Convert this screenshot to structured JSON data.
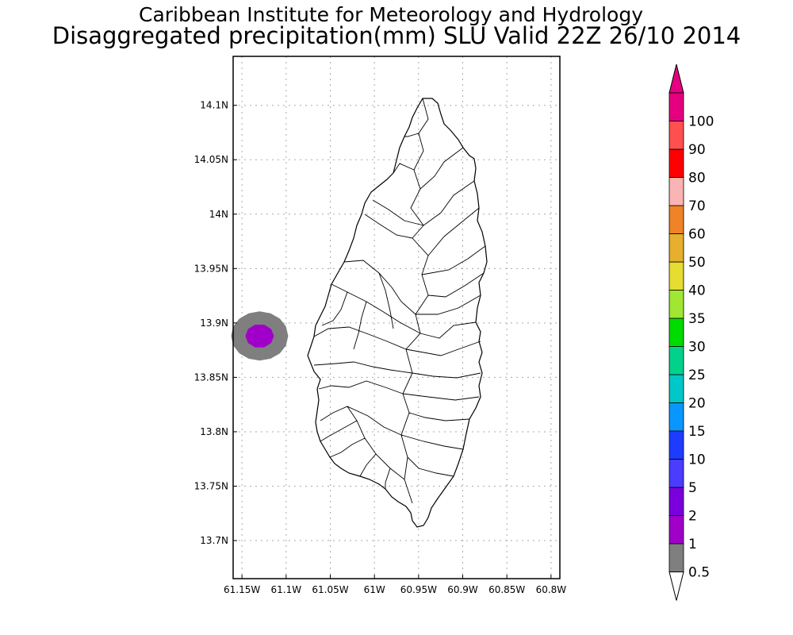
{
  "title": "Caribbean Institute for Meteorology and Hydrology",
  "subtitle": "Disaggregated precipitation(mm) SLU Valid 22Z 26/10 2014",
  "map": {
    "lon_range": [
      -61.16,
      -60.79
    ],
    "lat_range": [
      13.665,
      14.145
    ],
    "lon_ticks": [
      {
        "value": -61.15,
        "label": "61.15W"
      },
      {
        "value": -61.1,
        "label": "61.1W"
      },
      {
        "value": -61.05,
        "label": "61.05W"
      },
      {
        "value": -61.0,
        "label": "61W"
      },
      {
        "value": -60.95,
        "label": "60.95W"
      },
      {
        "value": -60.9,
        "label": "60.9W"
      },
      {
        "value": -60.85,
        "label": "60.85W"
      },
      {
        "value": -60.8,
        "label": "60.8W"
      }
    ],
    "lat_ticks": [
      {
        "value": 14.1,
        "label": "14.1N"
      },
      {
        "value": 14.05,
        "label": "14.05N"
      },
      {
        "value": 14.0,
        "label": "14N"
      },
      {
        "value": 13.95,
        "label": "13.95N"
      },
      {
        "value": 13.9,
        "label": "13.9N"
      },
      {
        "value": 13.85,
        "label": "13.85N"
      },
      {
        "value": 13.8,
        "label": "13.8N"
      },
      {
        "value": 13.75,
        "label": "13.75N"
      },
      {
        "value": 13.7,
        "label": "13.7N"
      }
    ],
    "grid": true,
    "precip_cell": {
      "center_lon": -61.13,
      "center_lat": 13.888,
      "outer_class": "0.5-1",
      "inner_class": "1-2"
    }
  },
  "legend": {
    "levels": [
      "0.5",
      "1",
      "2",
      "5",
      "10",
      "15",
      "20",
      "25",
      "30",
      "35",
      "40",
      "50",
      "60",
      "70",
      "80",
      "90",
      "100"
    ],
    "colors": [
      "#7f7f7f",
      "#a000c8",
      "#7a00dc",
      "#4b3cff",
      "#1e3cff",
      "#0a96ff",
      "#00c8c8",
      "#00d28c",
      "#00dc00",
      "#a0e632",
      "#e6dc32",
      "#e6af2d",
      "#f08228",
      "#fab4b4",
      "#ff0000",
      "#ff5050",
      "#e60080"
    ],
    "top_arrow_color": "#e60080",
    "bottom_arrow_color": "#ffffff"
  }
}
